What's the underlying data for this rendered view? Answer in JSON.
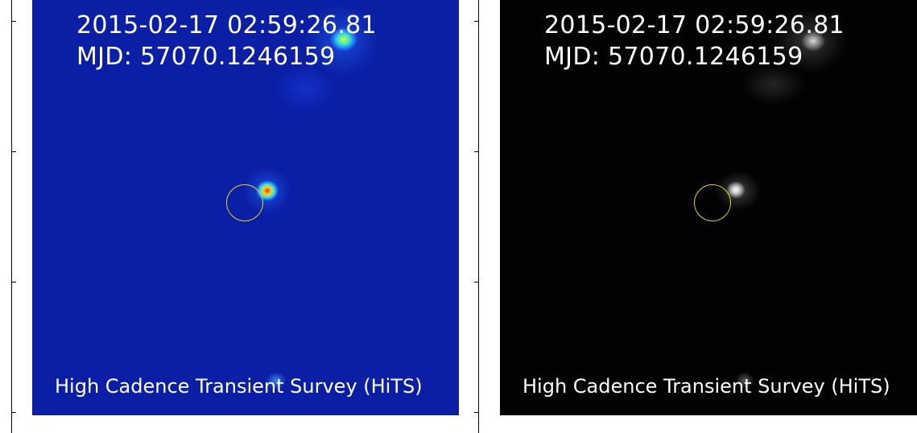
{
  "colors": {
    "left_background": "#0a1ea6",
    "right_background": "#020202",
    "circle": "#d9d21a",
    "text": "#ffffff"
  },
  "panels": [
    {
      "colormap": "jet",
      "timestamp": "2015-02-17 02:59:26.81",
      "mjd": "MJD: 57070.1246159",
      "credit": "High Cadence Transient Survey (HiTS)"
    },
    {
      "colormap": "gray",
      "timestamp": "2015-02-17 02:59:26.81",
      "mjd": "MJD: 57070.1246159",
      "credit": "High Cadence Transient Survey (HiTS)"
    }
  ]
}
